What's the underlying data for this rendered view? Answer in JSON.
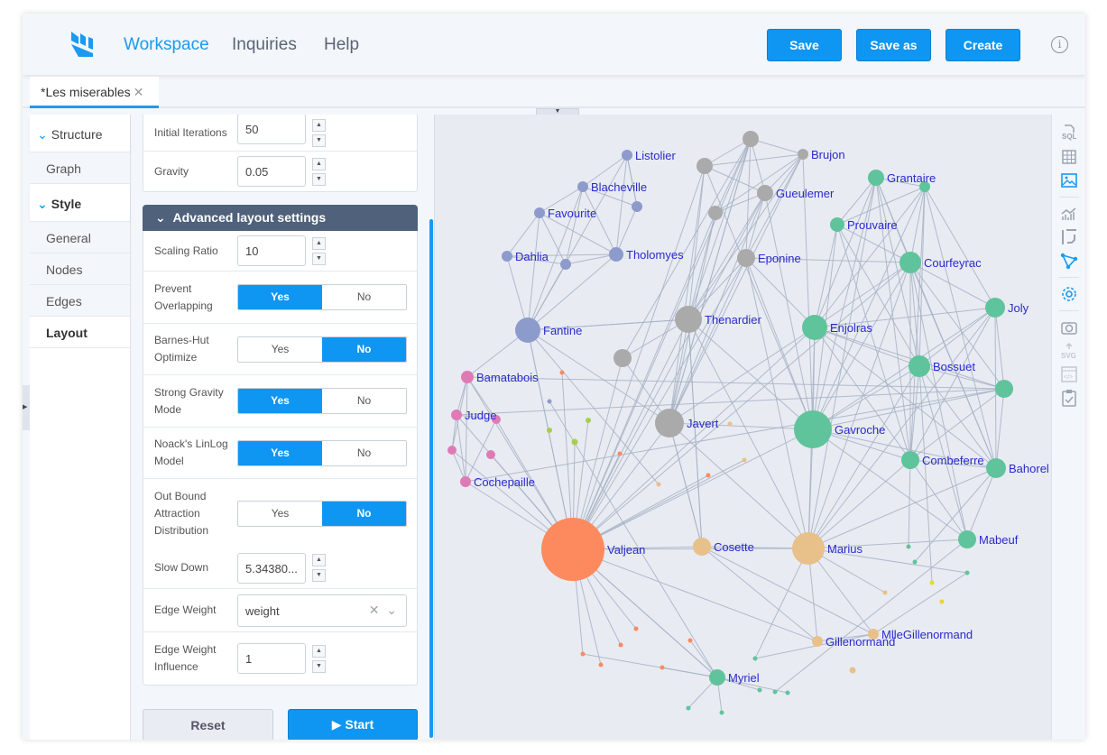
{
  "header": {
    "nav": [
      "Workspace",
      "Inquiries",
      "Help"
    ],
    "buttons": {
      "save": "Save",
      "save_as": "Save as",
      "create": "Create"
    },
    "info": "i",
    "accent": "#0f96f2"
  },
  "tabs": [
    {
      "label": "*Les miserables",
      "close": "✕"
    }
  ],
  "sidebar": {
    "structure": "Structure",
    "graph": "Graph",
    "style": "Style",
    "items": [
      "General",
      "Nodes",
      "Edges",
      "Layout"
    ]
  },
  "layout": {
    "initial_iterations": {
      "label": "Initial Iterations",
      "value": "50"
    },
    "gravity": {
      "label": "Gravity",
      "value": "0.05"
    },
    "advanced_title": "Advanced layout settings",
    "scaling_ratio": {
      "label": "Scaling Ratio",
      "value": "10"
    },
    "toggles": [
      {
        "label": "Prevent Overlapping",
        "yes": "Yes",
        "no": "No",
        "value": "Yes"
      },
      {
        "label": "Barnes-Hut Optimize",
        "yes": "Yes",
        "no": "No",
        "value": "No"
      },
      {
        "label": "Strong Gravity Mode",
        "yes": "Yes",
        "no": "No",
        "value": "Yes"
      },
      {
        "label": "Noack's LinLog Model",
        "yes": "Yes",
        "no": "No",
        "value": "Yes"
      },
      {
        "label": "Out Bound Attraction Distribution",
        "yes": "Yes",
        "no": "No",
        "value": "No"
      }
    ],
    "slow_down": {
      "label": "Slow Down",
      "value": "5.34380..."
    },
    "edge_weight": {
      "label": "Edge Weight",
      "value": "weight"
    },
    "edge_weight_influence": {
      "label": "Edge Weight Influence",
      "value": "1"
    },
    "reset": "Reset",
    "start": "▶ Start"
  },
  "toolbar": [
    "sql-icon",
    "table-icon",
    "image-icon",
    "chart-icon",
    "transform-icon",
    "graph-icon",
    "gear-icon",
    "camera-icon",
    "svg-export-icon",
    "embed-icon",
    "clipboard-icon"
  ],
  "graph": {
    "edge_color": "#a7b2c4",
    "label_color": "#2a2acc",
    "group_colors": {
      "blue": "#8c9bcc",
      "pink": "#e07ab6",
      "gray": "#aaaaaa",
      "green": "#5fc49b",
      "orange": "#fc8a5e",
      "tan": "#e8c08a",
      "lime": "#a6d04a",
      "yellow": "#e8d82a"
    },
    "labels": [
      "Listolier",
      "Blacheville",
      "Favourite",
      "Dahlia",
      "Tholomyes",
      "Fantine",
      "Bamatabois",
      "Judge",
      "Cochepaille",
      "Brujon",
      "Gueulemer",
      "Eponine",
      "Thenardier",
      "Javert",
      "Grantaire",
      "Prouvaire",
      "Courfeyrac",
      "Joly",
      "Enjolras",
      "Bossuet",
      "Gavroche",
      "Combeferre",
      "Bahorel",
      "Mabeuf",
      "Valjean",
      "Cosette",
      "Marius",
      "Gillenormand",
      "MlleGillenormand",
      "Myriel"
    ]
  }
}
